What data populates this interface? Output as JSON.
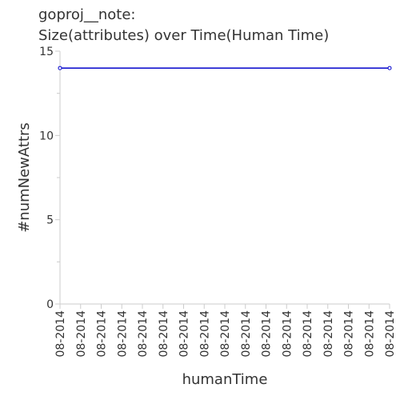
{
  "chart_data": {
    "type": "line",
    "title_line1": "goproj__note:",
    "title_line2": "Size(attributes) over Time(Human Time)",
    "xlabel": "humanTime",
    "ylabel": "#numNewAttrs",
    "x_tick_labels": [
      "08-2014",
      "08-2014",
      "08-2014",
      "08-2014",
      "08-2014",
      "08-2014",
      "08-2014",
      "08-2014",
      "08-2014",
      "08-2014",
      "08-2014",
      "08-2014",
      "08-2014",
      "08-2014",
      "08-2014",
      "08-2014",
      "08-2014"
    ],
    "x_tick_positions": [
      0,
      1,
      2,
      3,
      4,
      5,
      6,
      7,
      8,
      9,
      10,
      11,
      12,
      13,
      14,
      15,
      16
    ],
    "y_ticks": [
      0,
      5,
      10,
      15
    ],
    "ylim": [
      0,
      15
    ],
    "xlim": [
      0,
      16
    ],
    "series": [
      {
        "x": [
          0,
          16
        ],
        "values": [
          14,
          14
        ]
      }
    ],
    "line_color": "#0000cc",
    "axis_color": "#cccccc",
    "grid": false
  }
}
